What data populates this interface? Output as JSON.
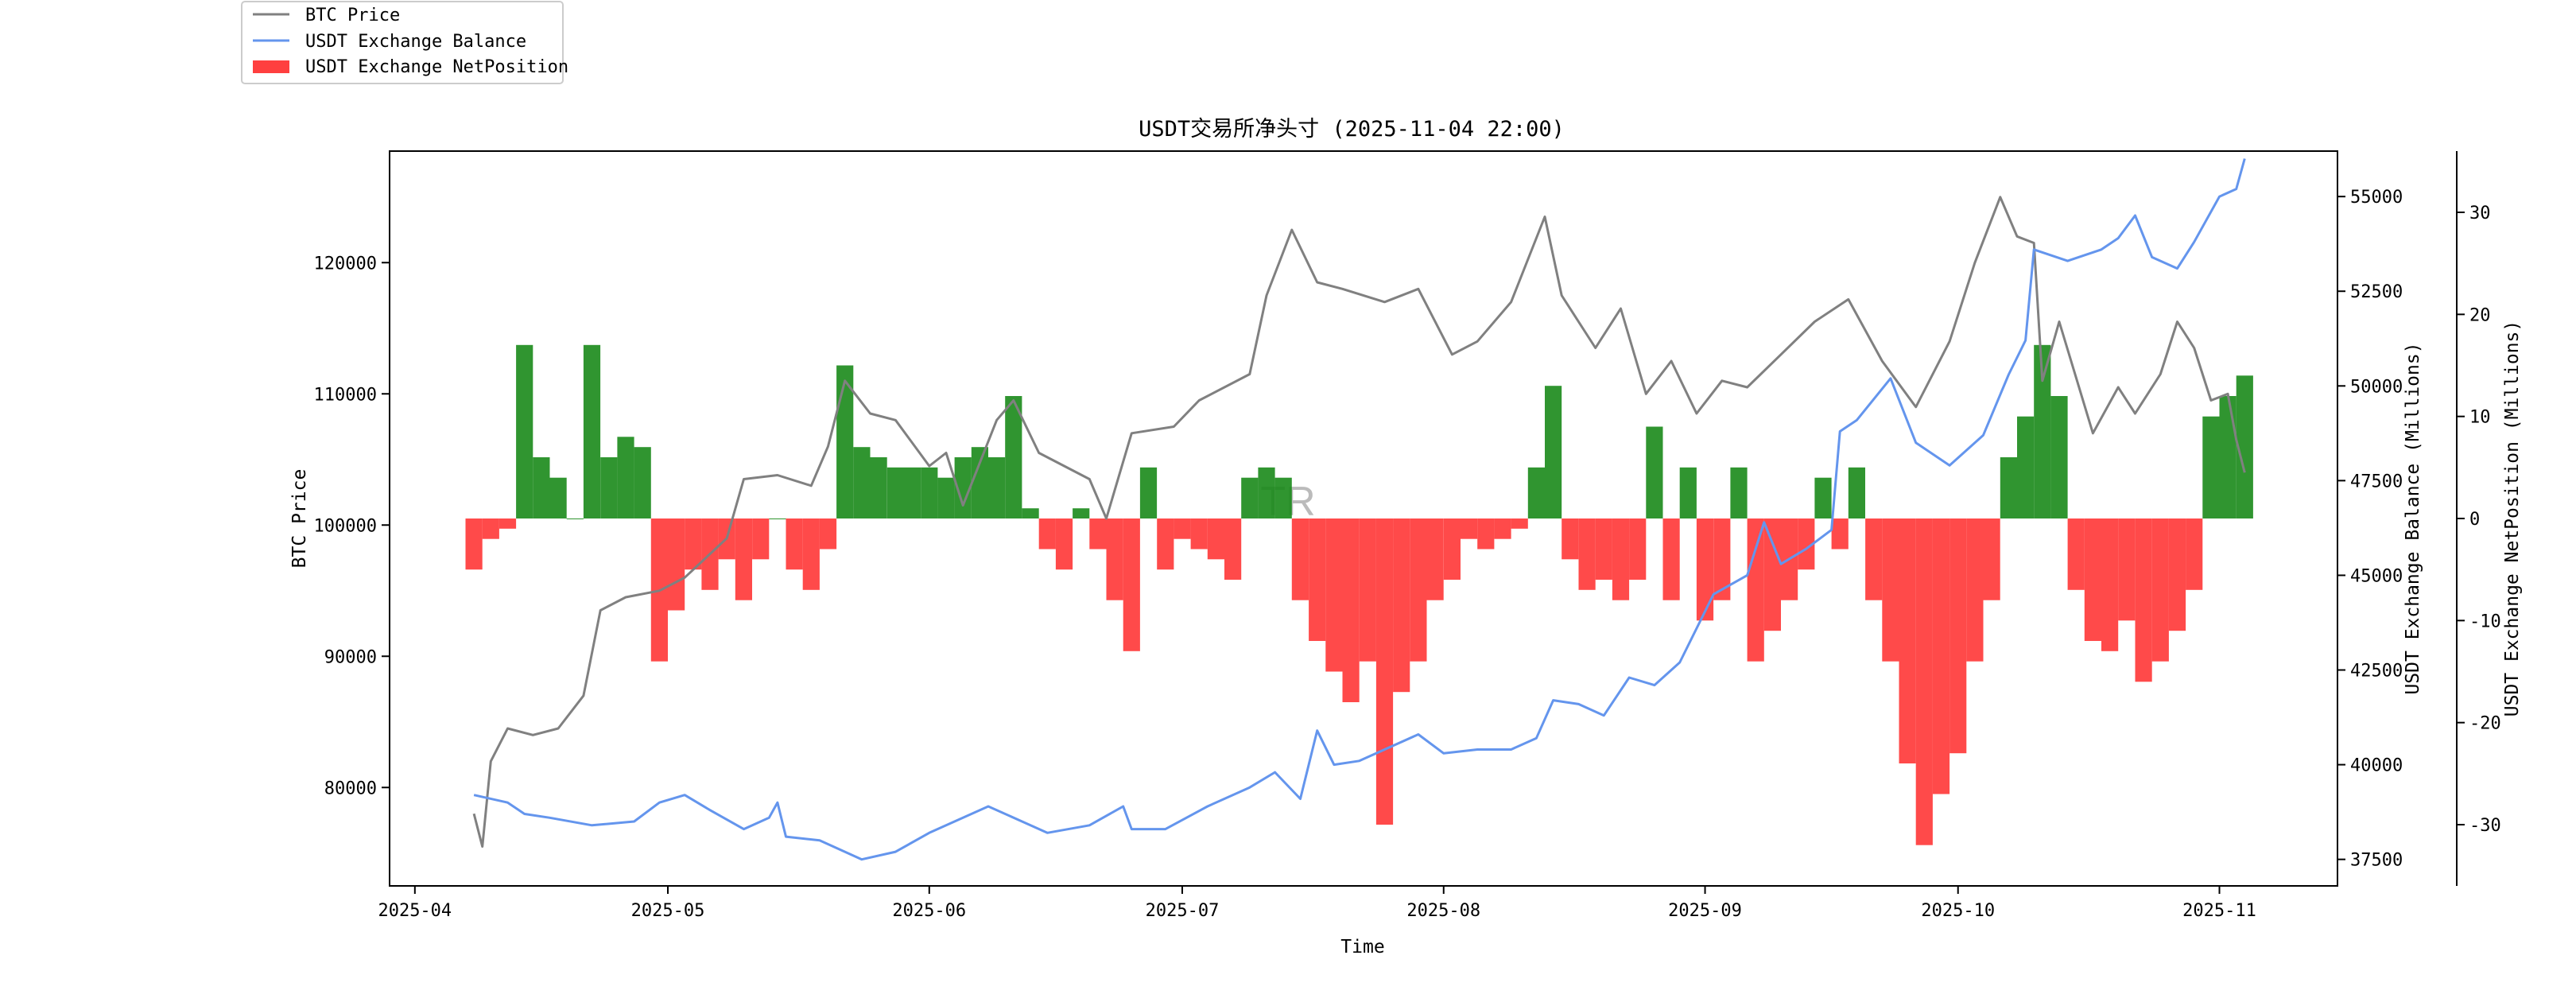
{
  "chart_data": {
    "type": "line",
    "title": "USDT交易所净头寸 (2025-11-04 22:00)",
    "xlabel": "Time",
    "watermark": "TR",
    "x_ticks": [
      "2025-04",
      "2025-05",
      "2025-06",
      "2025-07",
      "2025-08",
      "2025-09",
      "2025-10",
      "2025-11"
    ],
    "axes": {
      "btc": {
        "label": "BTC Price",
        "range": [
          72500,
          128500
        ],
        "ticks": [
          80000,
          90000,
          100000,
          110000,
          120000
        ]
      },
      "balance": {
        "label": "USDT Exchange Balance (Millions)",
        "range": [
          36800,
          56200
        ],
        "ticks": [
          37500,
          40000,
          42500,
          45000,
          47500,
          50000,
          52500,
          55000
        ]
      },
      "netpos": {
        "label": "USDT Exchange NetPosition (Millions)",
        "range": [
          -36,
          36
        ],
        "ticks": [
          -30,
          -20,
          -10,
          0,
          10,
          20,
          30
        ]
      }
    },
    "legend": {
      "placement": "top-left",
      "items": [
        {
          "label": "BTC Price",
          "color": "#808080",
          "kind": "line"
        },
        {
          "label": "USDT Exchange Balance",
          "color": "#6495ed",
          "kind": "line"
        },
        {
          "label": "USDT Exchange NetPosition",
          "color": "#ff2a2a",
          "kind": "bar"
        }
      ]
    },
    "colors": {
      "btc": "#808080",
      "balance": "#6495ed",
      "net_positive": "#1a8a1a",
      "net_negative": "#ff2a2a"
    },
    "x_range": [
      "2025-03-29",
      "2025-11-15"
    ],
    "series": [
      {
        "name": "BTC Price",
        "axis": "btc",
        "points": [
          [
            "2025-04-08",
            78000
          ],
          [
            "2025-04-09",
            75500
          ],
          [
            "2025-04-10",
            82000
          ],
          [
            "2025-04-12",
            84500
          ],
          [
            "2025-04-15",
            84000
          ],
          [
            "2025-04-18",
            84500
          ],
          [
            "2025-04-21",
            87000
          ],
          [
            "2025-04-23",
            93500
          ],
          [
            "2025-04-26",
            94500
          ],
          [
            "2025-04-30",
            95000
          ],
          [
            "2025-05-03",
            96000
          ],
          [
            "2025-05-08",
            99000
          ],
          [
            "2025-05-10",
            103500
          ],
          [
            "2025-05-14",
            103800
          ],
          [
            "2025-05-18",
            103000
          ],
          [
            "2025-05-20",
            106000
          ],
          [
            "2025-05-22",
            111000
          ],
          [
            "2025-05-25",
            108500
          ],
          [
            "2025-05-28",
            108000
          ],
          [
            "2025-06-01",
            104500
          ],
          [
            "2025-06-03",
            105500
          ],
          [
            "2025-06-05",
            101500
          ],
          [
            "2025-06-09",
            108000
          ],
          [
            "2025-06-11",
            109500
          ],
          [
            "2025-06-14",
            105500
          ],
          [
            "2025-06-17",
            104500
          ],
          [
            "2025-06-20",
            103500
          ],
          [
            "2025-06-22",
            100500
          ],
          [
            "2025-06-25",
            107000
          ],
          [
            "2025-06-30",
            107500
          ],
          [
            "2025-07-03",
            109500
          ],
          [
            "2025-07-09",
            111500
          ],
          [
            "2025-07-11",
            117500
          ],
          [
            "2025-07-14",
            122500
          ],
          [
            "2025-07-17",
            118500
          ],
          [
            "2025-07-20",
            118000
          ],
          [
            "2025-07-25",
            117000
          ],
          [
            "2025-07-29",
            118000
          ],
          [
            "2025-08-02",
            113000
          ],
          [
            "2025-08-05",
            114000
          ],
          [
            "2025-08-09",
            117000
          ],
          [
            "2025-08-13",
            123500
          ],
          [
            "2025-08-15",
            117500
          ],
          [
            "2025-08-19",
            113500
          ],
          [
            "2025-08-22",
            116500
          ],
          [
            "2025-08-25",
            110000
          ],
          [
            "2025-08-28",
            112500
          ],
          [
            "2025-08-31",
            108500
          ],
          [
            "2025-09-03",
            111000
          ],
          [
            "2025-09-06",
            110500
          ],
          [
            "2025-09-10",
            113000
          ],
          [
            "2025-09-14",
            115500
          ],
          [
            "2025-09-18",
            117200
          ],
          [
            "2025-09-22",
            112500
          ],
          [
            "2025-09-26",
            109000
          ],
          [
            "2025-09-30",
            114000
          ],
          [
            "2025-10-03",
            120000
          ],
          [
            "2025-10-06",
            125000
          ],
          [
            "2025-10-08",
            122000
          ],
          [
            "2025-10-10",
            121500
          ],
          [
            "2025-10-11",
            111000
          ],
          [
            "2025-10-13",
            115500
          ],
          [
            "2025-10-17",
            107000
          ],
          [
            "2025-10-20",
            110500
          ],
          [
            "2025-10-22",
            108500
          ],
          [
            "2025-10-25",
            111500
          ],
          [
            "2025-10-27",
            115500
          ],
          [
            "2025-10-29",
            113500
          ],
          [
            "2025-10-31",
            109500
          ],
          [
            "2025-11-02",
            110000
          ],
          [
            "2025-11-03",
            106500
          ],
          [
            "2025-11-04",
            104000
          ]
        ]
      },
      {
        "name": "USDT Exchange Balance",
        "axis": "balance",
        "points": [
          [
            "2025-04-08",
            39200
          ],
          [
            "2025-04-12",
            39000
          ],
          [
            "2025-04-14",
            38700
          ],
          [
            "2025-04-17",
            38600
          ],
          [
            "2025-04-22",
            38400
          ],
          [
            "2025-04-27",
            38500
          ],
          [
            "2025-04-30",
            39000
          ],
          [
            "2025-05-03",
            39200
          ],
          [
            "2025-05-06",
            38800
          ],
          [
            "2025-05-10",
            38300
          ],
          [
            "2025-05-13",
            38600
          ],
          [
            "2025-05-14",
            39000
          ],
          [
            "2025-05-15",
            38100
          ],
          [
            "2025-05-19",
            38000
          ],
          [
            "2025-05-24",
            37500
          ],
          [
            "2025-05-28",
            37700
          ],
          [
            "2025-06-01",
            38200
          ],
          [
            "2025-06-05",
            38600
          ],
          [
            "2025-06-08",
            38900
          ],
          [
            "2025-06-12",
            38500
          ],
          [
            "2025-06-15",
            38200
          ],
          [
            "2025-06-20",
            38400
          ],
          [
            "2025-06-24",
            38900
          ],
          [
            "2025-06-25",
            38300
          ],
          [
            "2025-06-29",
            38300
          ],
          [
            "2025-07-04",
            38900
          ],
          [
            "2025-07-09",
            39400
          ],
          [
            "2025-07-12",
            39800
          ],
          [
            "2025-07-15",
            39100
          ],
          [
            "2025-07-17",
            40900
          ],
          [
            "2025-07-19",
            40000
          ],
          [
            "2025-07-22",
            40100
          ],
          [
            "2025-07-25",
            40400
          ],
          [
            "2025-07-29",
            40800
          ],
          [
            "2025-08-01",
            40300
          ],
          [
            "2025-08-05",
            40400
          ],
          [
            "2025-08-09",
            40400
          ],
          [
            "2025-08-12",
            40700
          ],
          [
            "2025-08-14",
            41700
          ],
          [
            "2025-08-17",
            41600
          ],
          [
            "2025-08-20",
            41300
          ],
          [
            "2025-08-23",
            42300
          ],
          [
            "2025-08-26",
            42100
          ],
          [
            "2025-08-29",
            42700
          ],
          [
            "2025-09-02",
            44500
          ],
          [
            "2025-09-06",
            45000
          ],
          [
            "2025-09-08",
            46400
          ],
          [
            "2025-09-10",
            45300
          ],
          [
            "2025-09-13",
            45700
          ],
          [
            "2025-09-16",
            46200
          ],
          [
            "2025-09-17",
            48800
          ],
          [
            "2025-09-19",
            49100
          ],
          [
            "2025-09-23",
            50200
          ],
          [
            "2025-09-26",
            48500
          ],
          [
            "2025-09-30",
            47900
          ],
          [
            "2025-10-04",
            48700
          ],
          [
            "2025-10-07",
            50300
          ],
          [
            "2025-10-09",
            51200
          ],
          [
            "2025-10-10",
            53600
          ],
          [
            "2025-10-14",
            53300
          ],
          [
            "2025-10-18",
            53600
          ],
          [
            "2025-10-20",
            53900
          ],
          [
            "2025-10-22",
            54500
          ],
          [
            "2025-10-24",
            53400
          ],
          [
            "2025-10-27",
            53100
          ],
          [
            "2025-10-29",
            53800
          ],
          [
            "2025-11-01",
            55000
          ],
          [
            "2025-11-03",
            55200
          ],
          [
            "2025-11-04",
            56000
          ]
        ]
      },
      {
        "name": "USDT Exchange NetPosition",
        "axis": "netpos",
        "type": "bar",
        "points": [
          [
            "2025-04-08",
            -5
          ],
          [
            "2025-04-10",
            -2
          ],
          [
            "2025-04-12",
            -1
          ],
          [
            "2025-04-14",
            17
          ],
          [
            "2025-04-16",
            6
          ],
          [
            "2025-04-18",
            4
          ],
          [
            "2025-04-20",
            0
          ],
          [
            "2025-04-22",
            17
          ],
          [
            "2025-04-24",
            6
          ],
          [
            "2025-04-26",
            8
          ],
          [
            "2025-04-28",
            7
          ],
          [
            "2025-04-30",
            -14
          ],
          [
            "2025-05-02",
            -9
          ],
          [
            "2025-05-04",
            -5
          ],
          [
            "2025-05-06",
            -7
          ],
          [
            "2025-05-08",
            -4
          ],
          [
            "2025-05-10",
            -8
          ],
          [
            "2025-05-12",
            -4
          ],
          [
            "2025-05-14",
            0
          ],
          [
            "2025-05-16",
            -5
          ],
          [
            "2025-05-18",
            -7
          ],
          [
            "2025-05-20",
            -3
          ],
          [
            "2025-05-22",
            15
          ],
          [
            "2025-05-24",
            7
          ],
          [
            "2025-05-26",
            6
          ],
          [
            "2025-05-28",
            5
          ],
          [
            "2025-05-30",
            5
          ],
          [
            "2025-06-01",
            5
          ],
          [
            "2025-06-03",
            4
          ],
          [
            "2025-06-05",
            6
          ],
          [
            "2025-06-07",
            7
          ],
          [
            "2025-06-09",
            6
          ],
          [
            "2025-06-11",
            12
          ],
          [
            "2025-06-13",
            1
          ],
          [
            "2025-06-15",
            -3
          ],
          [
            "2025-06-17",
            -5
          ],
          [
            "2025-06-19",
            1
          ],
          [
            "2025-06-21",
            -3
          ],
          [
            "2025-06-23",
            -8
          ],
          [
            "2025-06-25",
            -13
          ],
          [
            "2025-06-27",
            5
          ],
          [
            "2025-06-29",
            -5
          ],
          [
            "2025-07-01",
            -2
          ],
          [
            "2025-07-03",
            -3
          ],
          [
            "2025-07-05",
            -4
          ],
          [
            "2025-07-07",
            -6
          ],
          [
            "2025-07-09",
            4
          ],
          [
            "2025-07-11",
            5
          ],
          [
            "2025-07-13",
            4
          ],
          [
            "2025-07-15",
            -8
          ],
          [
            "2025-07-17",
            -12
          ],
          [
            "2025-07-19",
            -15
          ],
          [
            "2025-07-21",
            -18
          ],
          [
            "2025-07-23",
            -14
          ],
          [
            "2025-07-25",
            -30
          ],
          [
            "2025-07-27",
            -17
          ],
          [
            "2025-07-29",
            -14
          ],
          [
            "2025-07-31",
            -8
          ],
          [
            "2025-08-02",
            -6
          ],
          [
            "2025-08-04",
            -2
          ],
          [
            "2025-08-06",
            -3
          ],
          [
            "2025-08-08",
            -2
          ],
          [
            "2025-08-10",
            -1
          ],
          [
            "2025-08-12",
            5
          ],
          [
            "2025-08-14",
            13
          ],
          [
            "2025-08-16",
            -4
          ],
          [
            "2025-08-18",
            -7
          ],
          [
            "2025-08-20",
            -6
          ],
          [
            "2025-08-22",
            -8
          ],
          [
            "2025-08-24",
            -6
          ],
          [
            "2025-08-26",
            9
          ],
          [
            "2025-08-28",
            -8
          ],
          [
            "2025-08-30",
            5
          ],
          [
            "2025-09-01",
            -10
          ],
          [
            "2025-09-03",
            -8
          ],
          [
            "2025-09-05",
            5
          ],
          [
            "2025-09-07",
            -14
          ],
          [
            "2025-09-09",
            -11
          ],
          [
            "2025-09-11",
            -8
          ],
          [
            "2025-09-13",
            -5
          ],
          [
            "2025-09-15",
            4
          ],
          [
            "2025-09-17",
            -3
          ],
          [
            "2025-09-19",
            5
          ],
          [
            "2025-09-21",
            -8
          ],
          [
            "2025-09-23",
            -14
          ],
          [
            "2025-09-25",
            -24
          ],
          [
            "2025-09-27",
            -32
          ],
          [
            "2025-09-29",
            -27
          ],
          [
            "2025-10-01",
            -23
          ],
          [
            "2025-10-03",
            -14
          ],
          [
            "2025-10-05",
            -8
          ],
          [
            "2025-10-07",
            6
          ],
          [
            "2025-10-09",
            10
          ],
          [
            "2025-10-11",
            17
          ],
          [
            "2025-10-13",
            12
          ],
          [
            "2025-10-15",
            -7
          ],
          [
            "2025-10-17",
            -12
          ],
          [
            "2025-10-19",
            -13
          ],
          [
            "2025-10-21",
            -10
          ],
          [
            "2025-10-23",
            -16
          ],
          [
            "2025-10-25",
            -14
          ],
          [
            "2025-10-27",
            -11
          ],
          [
            "2025-10-29",
            -7
          ],
          [
            "2025-10-31",
            10
          ],
          [
            "2025-11-02",
            12
          ],
          [
            "2025-11-04",
            14
          ]
        ]
      }
    ]
  }
}
